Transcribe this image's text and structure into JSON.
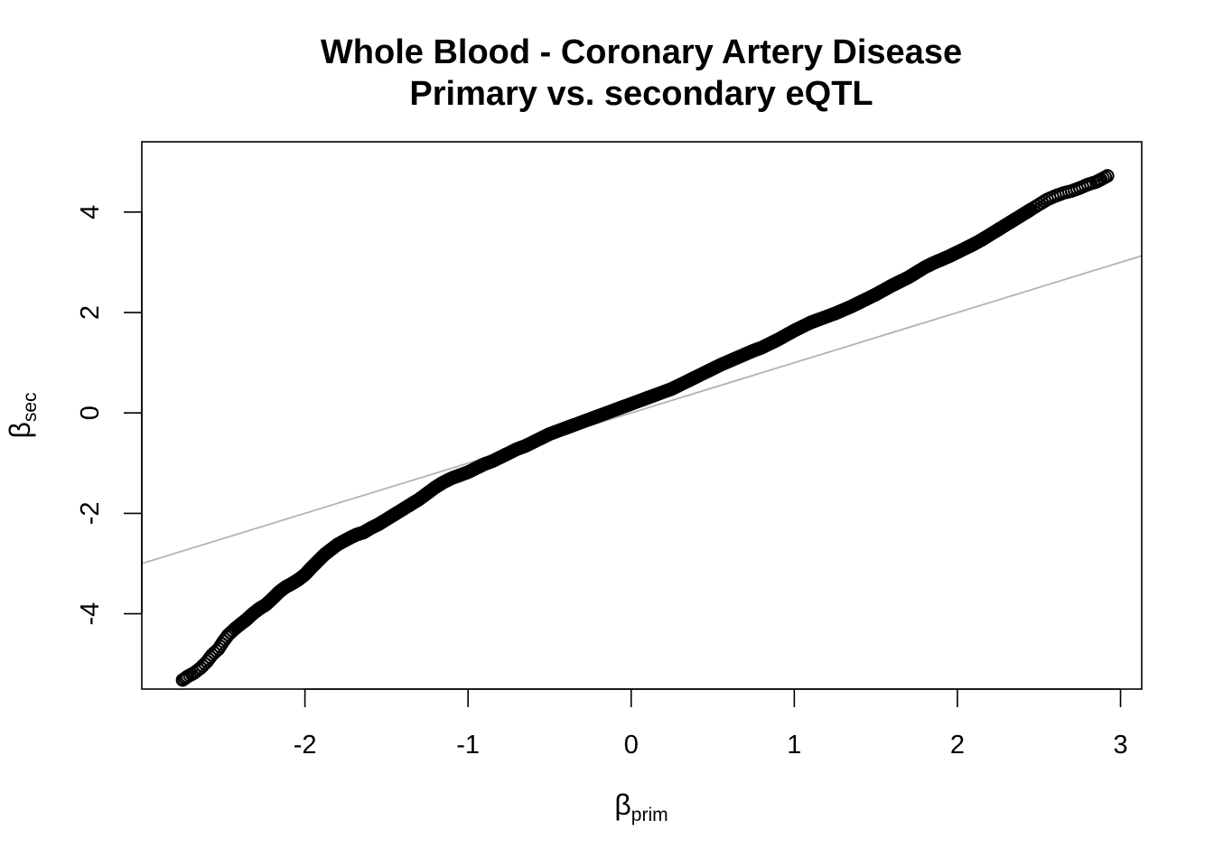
{
  "chart_data": {
    "type": "scatter",
    "title": "Whole Blood - Coronary Artery Disease",
    "subtitle": "Primary vs. secondary eQTL",
    "xlabel": {
      "symbol": "β",
      "subscript": "prim"
    },
    "ylabel": {
      "symbol": "β",
      "subscript": "sec"
    },
    "xlim": [
      -3,
      3.13
    ],
    "ylim": [
      -5.5,
      5.4
    ],
    "x_ticks": [
      -2,
      -1,
      0,
      1,
      2,
      3
    ],
    "x_tick_labels": [
      "-2",
      "-1",
      "0",
      "1",
      "2",
      "3"
    ],
    "y_ticks": [
      -4,
      -2,
      0,
      2,
      4
    ],
    "y_tick_labels": [
      "-4",
      "-2",
      "0",
      "2",
      "4"
    ],
    "reference_line": {
      "slope": 1,
      "intercept": 0,
      "color": "#b3b3b3"
    },
    "marker": {
      "shape": "open-circle",
      "color": "#000000"
    },
    "series": [
      {
        "x": [
          -2.75,
          -2.72,
          -2.68,
          -2.64,
          -2.6,
          -2.57,
          -2.53,
          -2.5,
          -2.47,
          -2.43,
          -2.4,
          -2.36,
          -2.32,
          -2.28,
          -2.24,
          -2.2,
          -2.16,
          -2.12,
          -2.08,
          -2.04,
          -2.0,
          -1.96,
          -1.92,
          -1.88,
          -1.84,
          -1.8,
          -1.76,
          -1.72,
          -1.68,
          -1.64,
          -1.6,
          -1.55,
          -1.5,
          -1.45,
          -1.4,
          -1.35,
          -1.3,
          -1.25,
          -1.2,
          -1.15,
          -1.1,
          -1.05,
          -1.0,
          -0.95,
          -0.9,
          -0.85,
          -0.8,
          -0.75,
          -0.7,
          -0.65,
          -0.6,
          -0.55,
          -0.5,
          -0.45,
          -0.4,
          -0.35,
          -0.3,
          -0.25,
          -0.2,
          -0.15,
          -0.1,
          -0.05,
          0.0,
          0.05,
          0.1,
          0.15,
          0.2,
          0.25,
          0.3,
          0.35,
          0.4,
          0.45,
          0.5,
          0.55,
          0.6,
          0.65,
          0.7,
          0.75,
          0.8,
          0.85,
          0.9,
          0.95,
          1.0,
          1.05,
          1.1,
          1.15,
          1.2,
          1.25,
          1.3,
          1.35,
          1.4,
          1.45,
          1.5,
          1.55,
          1.6,
          1.65,
          1.7,
          1.75,
          1.8,
          1.85,
          1.9,
          1.95,
          2.0,
          2.05,
          2.1,
          2.15,
          2.2,
          2.25,
          2.3,
          2.35,
          2.4,
          2.45,
          2.5,
          2.55,
          2.6,
          2.65,
          2.7,
          2.75,
          2.8,
          2.85,
          2.88,
          2.92
        ],
        "y": [
          -5.32,
          -5.25,
          -5.18,
          -5.08,
          -4.95,
          -4.82,
          -4.7,
          -4.55,
          -4.42,
          -4.3,
          -4.22,
          -4.12,
          -4.0,
          -3.9,
          -3.82,
          -3.7,
          -3.57,
          -3.47,
          -3.4,
          -3.32,
          -3.22,
          -3.08,
          -2.95,
          -2.82,
          -2.72,
          -2.62,
          -2.55,
          -2.48,
          -2.42,
          -2.38,
          -2.3,
          -2.22,
          -2.12,
          -2.02,
          -1.92,
          -1.82,
          -1.72,
          -1.6,
          -1.48,
          -1.38,
          -1.3,
          -1.24,
          -1.18,
          -1.1,
          -1.02,
          -0.96,
          -0.88,
          -0.8,
          -0.72,
          -0.66,
          -0.58,
          -0.5,
          -0.42,
          -0.36,
          -0.3,
          -0.24,
          -0.18,
          -0.12,
          -0.06,
          0.0,
          0.06,
          0.12,
          0.18,
          0.24,
          0.3,
          0.36,
          0.42,
          0.48,
          0.56,
          0.64,
          0.72,
          0.8,
          0.88,
          0.96,
          1.03,
          1.1,
          1.17,
          1.24,
          1.3,
          1.38,
          1.46,
          1.55,
          1.64,
          1.72,
          1.8,
          1.86,
          1.92,
          1.98,
          2.05,
          2.12,
          2.2,
          2.28,
          2.36,
          2.45,
          2.54,
          2.62,
          2.7,
          2.8,
          2.9,
          2.98,
          3.05,
          3.12,
          3.2,
          3.28,
          3.36,
          3.45,
          3.55,
          3.65,
          3.75,
          3.85,
          3.95,
          4.05,
          4.15,
          4.25,
          4.32,
          4.38,
          4.42,
          4.48,
          4.55,
          4.6,
          4.65,
          4.72
        ]
      }
    ]
  }
}
